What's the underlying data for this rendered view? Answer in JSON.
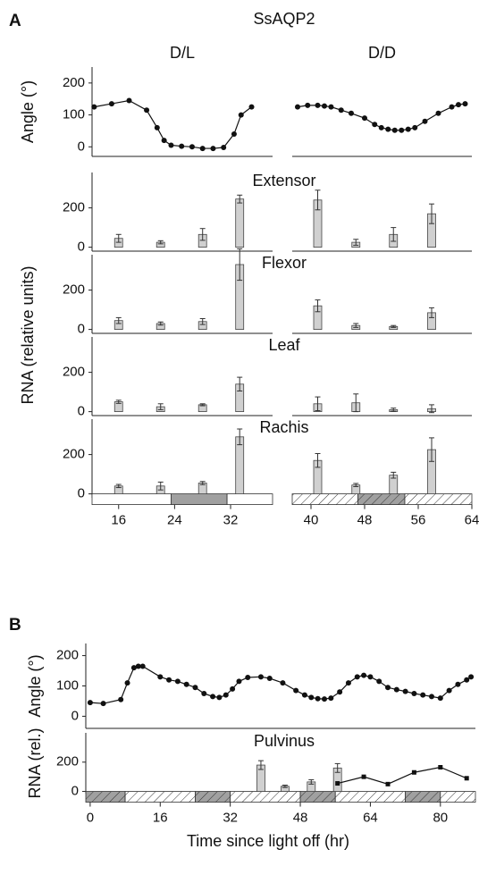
{
  "figure": {
    "panel_a_label": "A",
    "title": "SsAQP2",
    "rna_label": "RNA (relative units)",
    "panel_b_label": "B"
  },
  "chart_data": [
    {
      "type": "line",
      "y_label": "Angle (°)",
      "ylim": [
        -30,
        250
      ],
      "yticks": [
        0,
        100,
        200
      ],
      "color": "#111111",
      "marker": "circle",
      "panels": [
        {
          "title": "D/L",
          "xlim": [
            12.2,
            38
          ],
          "x": [
            12.5,
            15,
            17.5,
            20,
            21.5,
            22.5,
            23.5,
            25,
            26.5,
            28,
            29.5,
            31,
            32.5,
            33.5,
            35
          ],
          "values": [
            125,
            135,
            145,
            115,
            60,
            20,
            5,
            2,
            0,
            -5,
            -5,
            -2,
            40,
            100,
            125
          ]
        },
        {
          "title": "D/D",
          "xlim": [
            37.2,
            64
          ],
          "x": [
            38,
            39.5,
            41,
            42,
            43,
            44.5,
            46,
            48,
            49.5,
            50.5,
            51.5,
            52.5,
            53.5,
            54.5,
            55.5,
            57,
            59,
            61,
            62,
            63
          ],
          "values": [
            125,
            130,
            130,
            128,
            125,
            115,
            105,
            90,
            70,
            60,
            55,
            52,
            52,
            55,
            60,
            80,
            105,
            125,
            132,
            135
          ]
        }
      ]
    },
    {
      "type": "bar",
      "title": "Extensor",
      "ylim": [
        -20,
        380
      ],
      "yticks": [
        0,
        200
      ],
      "color": "#d0d0d0",
      "panels": [
        {
          "xlim": [
            12.2,
            38
          ],
          "x": [
            16,
            22,
            28,
            33.3
          ],
          "values": [
            45,
            25,
            65,
            245
          ],
          "errors": [
            20,
            8,
            30,
            20
          ]
        },
        {
          "xlim": [
            37.2,
            64
          ],
          "x": [
            41,
            46.7,
            52.3,
            58
          ],
          "values": [
            240,
            25,
            65,
            170
          ],
          "errors": [
            50,
            15,
            35,
            50
          ]
        }
      ]
    },
    {
      "type": "bar",
      "title": "Flexor",
      "ylim": [
        -20,
        380
      ],
      "yticks": [
        0,
        200
      ],
      "color": "#d0d0d0",
      "panels": [
        {
          "xlim": [
            12.2,
            38
          ],
          "x": [
            16,
            22,
            28,
            33.3
          ],
          "values": [
            45,
            30,
            40,
            330
          ],
          "errors": [
            15,
            8,
            15,
            80
          ]
        },
        {
          "xlim": [
            37.2,
            64
          ],
          "x": [
            41,
            46.7,
            52.3,
            58
          ],
          "values": [
            120,
            20,
            15,
            85
          ],
          "errors": [
            30,
            10,
            5,
            25
          ]
        }
      ]
    },
    {
      "type": "bar",
      "title": "Leaf",
      "ylim": [
        -20,
        380
      ],
      "yticks": [
        0,
        200
      ],
      "color": "#d0d0d0",
      "panels": [
        {
          "xlim": [
            12.2,
            38
          ],
          "x": [
            16,
            22,
            28,
            33.3
          ],
          "values": [
            50,
            25,
            35,
            140
          ],
          "errors": [
            8,
            15,
            5,
            35
          ]
        },
        {
          "xlim": [
            37.2,
            64
          ],
          "x": [
            41,
            46.7,
            52.3,
            58
          ],
          "values": [
            40,
            45,
            10,
            15
          ],
          "errors": [
            35,
            45,
            8,
            20
          ]
        }
      ]
    },
    {
      "type": "bar",
      "title": "Rachis",
      "ylim": [
        -20,
        380
      ],
      "yticks": [
        0,
        200
      ],
      "color": "#d0d0d0",
      "panels": [
        {
          "xlim": [
            12.2,
            38
          ],
          "xticks": [
            16,
            24,
            32
          ],
          "x": [
            16,
            22,
            28,
            33.3
          ],
          "values": [
            40,
            40,
            55,
            290
          ],
          "errors": [
            8,
            20,
            8,
            40
          ],
          "periods": [
            {
              "start": 12.2,
              "end": 23.5,
              "color": "#ffffff",
              "hatch": false
            },
            {
              "start": 23.5,
              "end": 31.5,
              "color": "#a0a0a0",
              "hatch": false
            },
            {
              "start": 31.5,
              "end": 38,
              "color": "#ffffff",
              "hatch": false
            }
          ]
        },
        {
          "xlim": [
            37.2,
            64
          ],
          "xticks": [
            40,
            48,
            56,
            64
          ],
          "x": [
            41,
            46.7,
            52.3,
            58
          ],
          "values": [
            170,
            45,
            95,
            225
          ],
          "errors": [
            35,
            8,
            15,
            60
          ],
          "periods": [
            {
              "start": 37.2,
              "end": 47,
              "color": "#ffffff",
              "hatch": true
            },
            {
              "start": 47,
              "end": 54,
              "color": "#a0a0a0",
              "hatch": true
            },
            {
              "start": 54,
              "end": 64,
              "color": "#ffffff",
              "hatch": true
            }
          ]
        }
      ]
    },
    {
      "type": "line",
      "y_label": "Angle (°)",
      "xlim": [
        -1,
        88
      ],
      "ylim": [
        -40,
        240
      ],
      "yticks": [
        0,
        100,
        200
      ],
      "color": "#111111",
      "marker": "circle",
      "x": [
        0,
        3,
        7,
        8.5,
        10,
        11,
        12,
        16,
        18,
        20,
        22,
        24,
        26,
        28,
        29.5,
        31,
        32.5,
        34,
        36,
        39,
        41,
        44,
        47,
        49,
        50.5,
        52,
        53.5,
        55,
        57,
        59,
        61,
        62.5,
        64,
        66,
        68,
        70,
        72,
        74,
        76,
        78,
        80,
        82,
        84,
        86,
        87
      ],
      "values": [
        45,
        42,
        55,
        110,
        160,
        165,
        165,
        130,
        120,
        115,
        105,
        95,
        75,
        65,
        62,
        70,
        90,
        115,
        128,
        130,
        125,
        110,
        85,
        70,
        62,
        58,
        57,
        60,
        80,
        110,
        130,
        135,
        130,
        115,
        95,
        88,
        82,
        75,
        70,
        65,
        60,
        85,
        105,
        120,
        130
      ]
    },
    {
      "type": "bar",
      "title": "Pulvinus",
      "y_label": "RNA (rel.)",
      "x_label": "Time since light off (hr)",
      "xlim": [
        -1,
        88
      ],
      "xticks": [
        0,
        16,
        32,
        48,
        64,
        80
      ],
      "ylim": [
        -15,
        400
      ],
      "yticks": [
        0,
        200
      ],
      "series": [
        {
          "type": "bar",
          "color": "#d0d0d0",
          "x": [
            39,
            44.5,
            50.5,
            56.5
          ],
          "values": [
            180,
            35,
            65,
            160
          ],
          "errors": [
            30,
            8,
            15,
            30
          ]
        },
        {
          "type": "line",
          "color": "#111111",
          "marker": "square",
          "x": [
            56.5,
            62.5,
            68,
            74,
            80,
            86
          ],
          "values": [
            55,
            100,
            50,
            130,
            165,
            90
          ]
        }
      ],
      "periods": [
        {
          "start": -1,
          "end": 8,
          "color": "#a0a0a0",
          "hatch": true
        },
        {
          "start": 8,
          "end": 24,
          "color": "#ffffff",
          "hatch": true
        },
        {
          "start": 24,
          "end": 32,
          "color": "#a0a0a0",
          "hatch": true
        },
        {
          "start": 32,
          "end": 48,
          "color": "#ffffff",
          "hatch": true
        },
        {
          "start": 48,
          "end": 56,
          "color": "#a0a0a0",
          "hatch": true
        },
        {
          "start": 56,
          "end": 72,
          "color": "#ffffff",
          "hatch": true
        },
        {
          "start": 72,
          "end": 80,
          "color": "#a0a0a0",
          "hatch": true
        },
        {
          "start": 80,
          "end": 88,
          "color": "#ffffff",
          "hatch": true
        }
      ]
    }
  ]
}
